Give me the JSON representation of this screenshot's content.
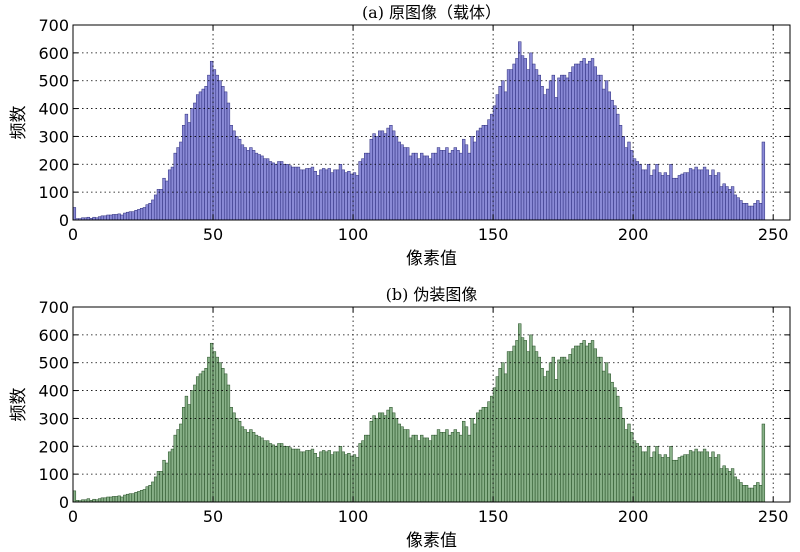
{
  "chart_data": [
    {
      "type": "bar",
      "title": "(a) 原图像（载体）",
      "xlabel": "像素值",
      "ylabel": "频数",
      "xlim": [
        0,
        256
      ],
      "ylim": [
        0,
        700
      ],
      "xticks": [
        0,
        50,
        100,
        150,
        200,
        250
      ],
      "yticks": [
        0,
        100,
        200,
        300,
        400,
        500,
        600,
        700
      ],
      "grid": true,
      "bar_color": "#8a8ad6",
      "bar_edge": "#2a2a7a",
      "x_start": 0,
      "values": [
        45,
        5,
        5,
        8,
        8,
        10,
        6,
        10,
        8,
        12,
        15,
        15,
        18,
        18,
        20,
        20,
        22,
        18,
        25,
        28,
        30,
        30,
        35,
        38,
        42,
        45,
        55,
        60,
        72,
        90,
        110,
        110,
        150,
        140,
        180,
        190,
        240,
        260,
        280,
        340,
        380,
        350,
        400,
        420,
        450,
        460,
        470,
        480,
        520,
        570,
        540,
        520,
        500,
        480,
        460,
        420,
        340,
        320,
        300,
        290,
        270,
        260,
        250,
        260,
        250,
        240,
        235,
        230,
        220,
        220,
        210,
        205,
        200,
        210,
        210,
        200,
        200,
        195,
        190,
        190,
        190,
        180,
        180,
        185,
        185,
        190,
        175,
        160,
        180,
        185,
        180,
        185,
        170,
        180,
        180,
        200,
        180,
        170,
        175,
        165,
        170,
        160,
        210,
        220,
        240,
        240,
        290,
        310,
        300,
        320,
        320,
        310,
        330,
        340,
        320,
        300,
        280,
        270,
        260,
        260,
        230,
        240,
        240,
        220,
        240,
        230,
        230,
        220,
        240,
        240,
        260,
        250,
        250,
        260,
        240,
        250,
        260,
        250,
        240,
        290,
        270,
        240,
        300,
        280,
        320,
        330,
        340,
        340,
        360,
        380,
        410,
        450,
        480,
        500,
        460,
        540,
        540,
        560,
        580,
        640,
        590,
        580,
        540,
        600,
        560,
        540,
        520,
        480,
        450,
        470,
        500,
        520,
        440,
        510,
        520,
        520,
        510,
        530,
        550,
        560,
        560,
        570,
        580,
        560,
        570,
        580,
        550,
        520,
        520,
        470,
        500,
        460,
        430,
        410,
        380,
        340,
        300,
        260,
        280,
        250,
        220,
        210,
        200,
        180,
        180,
        200,
        160,
        180,
        200,
        170,
        160,
        170,
        160,
        200,
        150,
        150,
        160,
        165,
        170,
        170,
        185,
        180,
        190,
        180,
        180,
        190,
        180,
        160,
        180,
        160,
        170,
        120,
        130,
        120,
        110,
        120,
        90,
        80,
        70,
        60,
        60,
        50,
        50,
        60,
        70,
        60,
        280
      ]
    },
    {
      "type": "bar",
      "title": "(b) 伪装图像",
      "xlabel": "像素值",
      "ylabel": "频数",
      "xlim": [
        0,
        256
      ],
      "ylim": [
        0,
        700
      ],
      "xticks": [
        0,
        50,
        100,
        150,
        200,
        250
      ],
      "yticks": [
        0,
        100,
        200,
        300,
        400,
        500,
        600,
        700
      ],
      "grid": true,
      "bar_color": "#88b088",
      "bar_edge": "#1f4a1f",
      "x_start": 0,
      "values": [
        40,
        6,
        5,
        8,
        8,
        12,
        6,
        10,
        8,
        12,
        15,
        15,
        18,
        18,
        20,
        20,
        22,
        18,
        25,
        28,
        30,
        30,
        35,
        38,
        42,
        45,
        55,
        60,
        72,
        90,
        110,
        110,
        150,
        140,
        180,
        190,
        240,
        260,
        280,
        340,
        380,
        350,
        400,
        420,
        450,
        460,
        470,
        480,
        520,
        570,
        540,
        520,
        500,
        480,
        460,
        420,
        340,
        320,
        300,
        290,
        270,
        260,
        250,
        260,
        250,
        240,
        235,
        230,
        220,
        220,
        210,
        205,
        200,
        210,
        210,
        200,
        200,
        195,
        190,
        190,
        190,
        180,
        180,
        185,
        185,
        190,
        175,
        160,
        180,
        185,
        180,
        185,
        170,
        180,
        180,
        200,
        180,
        170,
        175,
        165,
        170,
        160,
        210,
        220,
        240,
        240,
        290,
        310,
        300,
        320,
        320,
        310,
        330,
        340,
        320,
        300,
        280,
        270,
        260,
        260,
        230,
        240,
        240,
        220,
        240,
        230,
        230,
        220,
        240,
        240,
        260,
        250,
        250,
        260,
        240,
        250,
        260,
        250,
        240,
        290,
        270,
        240,
        300,
        280,
        320,
        330,
        340,
        340,
        360,
        380,
        410,
        450,
        480,
        500,
        460,
        540,
        540,
        560,
        580,
        640,
        590,
        580,
        540,
        600,
        560,
        540,
        520,
        480,
        450,
        470,
        500,
        520,
        440,
        510,
        520,
        520,
        510,
        530,
        550,
        560,
        560,
        570,
        580,
        560,
        570,
        580,
        550,
        520,
        520,
        470,
        500,
        460,
        430,
        410,
        380,
        340,
        300,
        260,
        280,
        250,
        220,
        210,
        200,
        180,
        180,
        200,
        160,
        180,
        200,
        170,
        160,
        170,
        160,
        200,
        150,
        150,
        160,
        165,
        170,
        170,
        185,
        180,
        190,
        180,
        180,
        190,
        180,
        160,
        180,
        160,
        170,
        120,
        130,
        120,
        110,
        120,
        90,
        80,
        70,
        60,
        60,
        50,
        50,
        60,
        70,
        60,
        280
      ]
    }
  ]
}
